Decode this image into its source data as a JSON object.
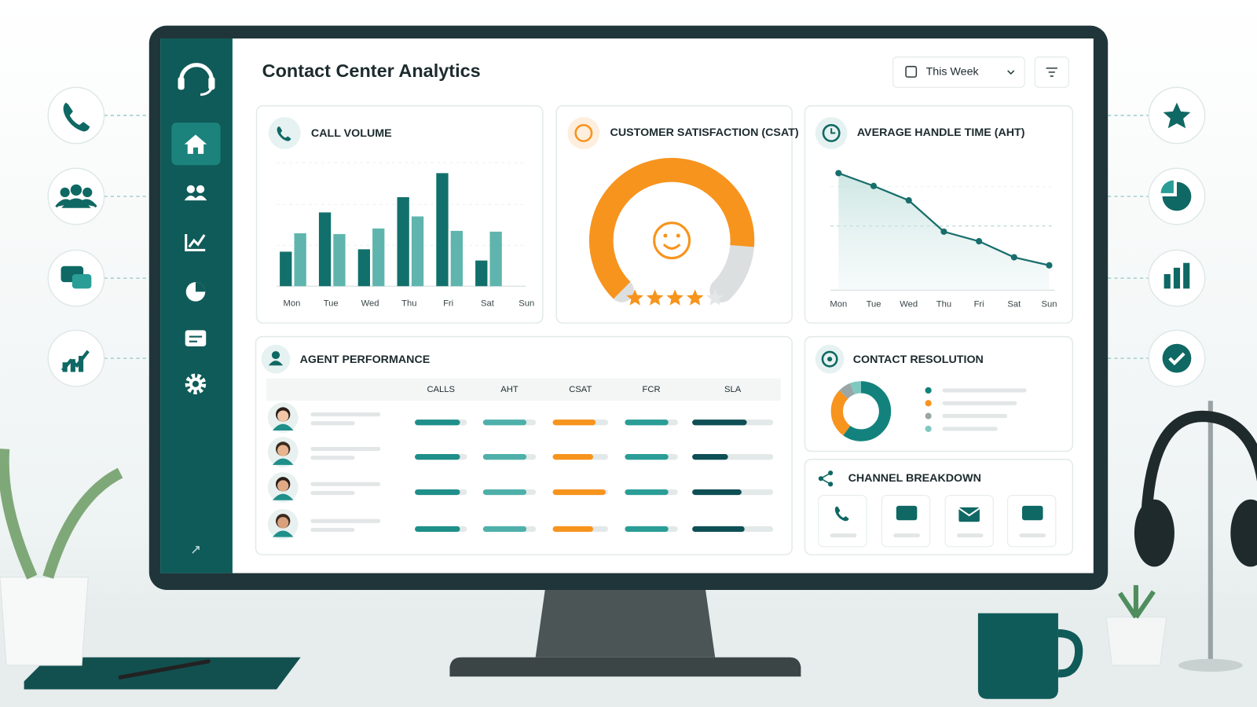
{
  "header": {
    "title": "Contact Center Analytics",
    "period": "This Week"
  },
  "call_volume": {
    "type": "bar",
    "title": "CALL VOLUME",
    "categories": [
      "Mon",
      "Tue",
      "Wed",
      "Thu",
      "Fri",
      "Sat",
      "Sun"
    ],
    "series": [
      {
        "color": "#11706b",
        "values": [
          43,
          92,
          46,
          111,
          141,
          32,
          null
        ]
      },
      {
        "color": "#5fb5ae",
        "values": [
          66,
          65,
          72,
          87,
          69,
          68,
          null
        ]
      }
    ],
    "ylim": [
      0,
      160
    ]
  },
  "csat": {
    "type": "gauge",
    "title": "CUSTOMER SATISFACTION (CSAT)",
    "value": 85,
    "lim": [
      0,
      100
    ],
    "color": "#f7941d",
    "rating": 4,
    "rating_max": 5
  },
  "aht": {
    "type": "line",
    "title": "AVERAGE HANDLE TIME (AHT)",
    "categories": [
      "Mon",
      "Tue",
      "Wed",
      "Thu",
      "Fri",
      "Sat",
      "Sun"
    ],
    "values": [
      146,
      130,
      112,
      73,
      61,
      41,
      31
    ],
    "ylim": [
      0,
      160
    ],
    "color": "#176e6c"
  },
  "agent_performance": {
    "type": "table-bars",
    "title": "AGENT PERFORMANCE",
    "columns": [
      "CALLS",
      "AHT",
      "CSAT",
      "FCR",
      "SLA"
    ],
    "colors": [
      "#1f8f8a",
      "#4fb0aa",
      "#f7941d",
      "#2a9d96",
      "#0e4f55"
    ],
    "rows": [
      [
        85,
        80,
        75,
        80,
        65
      ],
      [
        85,
        80,
        70,
        80,
        40
      ],
      [
        85,
        80,
        95,
        80,
        58
      ],
      [
        85,
        80,
        70,
        80,
        62
      ]
    ],
    "lim": [
      0,
      100
    ]
  },
  "contact_resolution": {
    "type": "donut",
    "title": "CONTACT RESOLUTION",
    "values": [
      60,
      27,
      7,
      6
    ],
    "colors": [
      "#13827c",
      "#f7941d",
      "#9aa6a6",
      "#7fc8c2"
    ]
  },
  "channel_breakdown": {
    "title": "CHANNEL BREAKDOWN"
  }
}
